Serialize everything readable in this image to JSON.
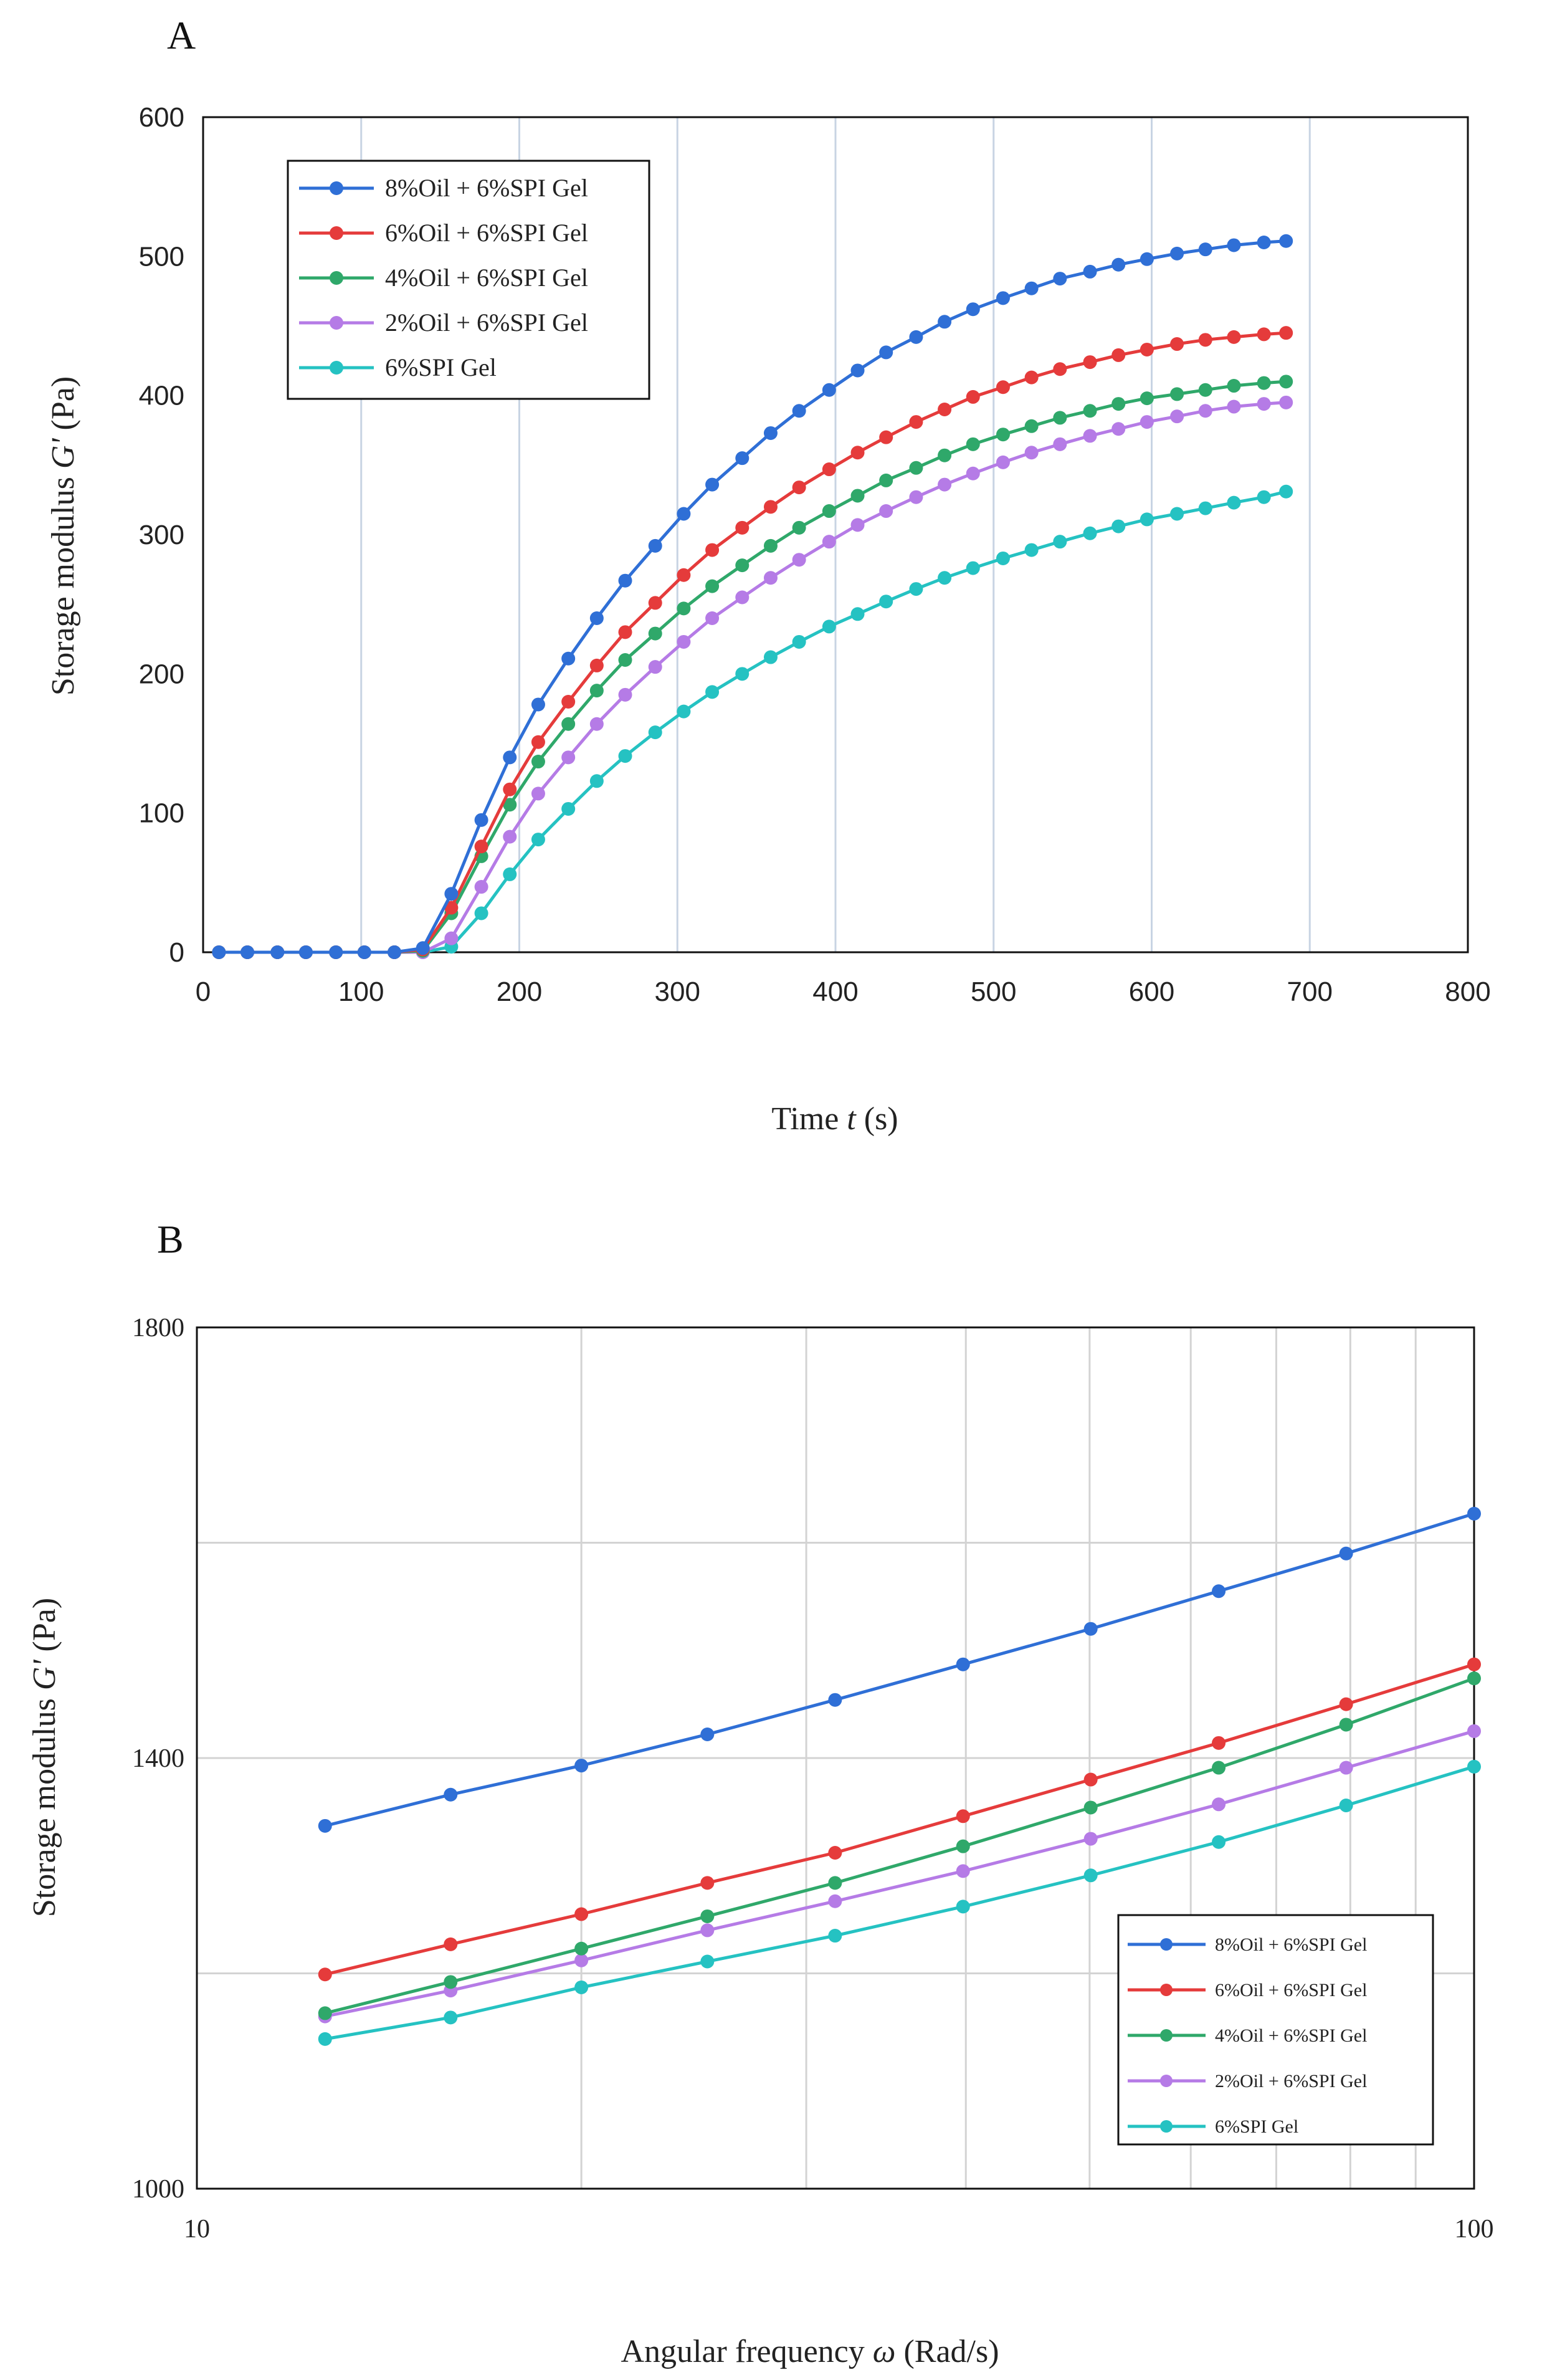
{
  "chart_data": [
    {
      "panel": "A",
      "type": "line",
      "title": "",
      "xlabel_prefix": "Time ",
      "xlabel_var": "t",
      "xlabel_suffix": " (s)",
      "ylabel_prefix": "Storage modulus ",
      "ylabel_var": "G'",
      "ylabel_suffix": " (Pa)",
      "xlim": [
        0,
        800
      ],
      "ylim": [
        0,
        600
      ],
      "xticks": [
        0,
        100,
        200,
        300,
        400,
        500,
        600,
        700,
        800
      ],
      "yticks": [
        0,
        100,
        200,
        300,
        400,
        500,
        600
      ],
      "grid": "vertical",
      "legend_position": "top-left",
      "x": [
        10,
        28,
        47,
        65,
        84,
        102,
        121,
        139,
        157,
        176,
        194,
        212,
        231,
        249,
        267,
        286,
        304,
        322,
        341,
        359,
        377,
        396,
        414,
        432,
        451,
        469,
        487,
        506,
        524,
        542,
        561,
        579,
        597,
        616,
        634,
        652,
        671,
        685
      ],
      "series": [
        {
          "name": "8%Oil + 6%SPI Gel",
          "color": "#2f6fd6",
          "values": [
            0,
            0,
            0,
            0,
            0,
            0,
            0,
            3,
            42,
            95,
            140,
            178,
            211,
            240,
            267,
            292,
            315,
            336,
            355,
            373,
            389,
            404,
            418,
            431,
            442,
            453,
            462,
            470,
            477,
            484,
            489,
            494,
            498,
            502,
            505,
            508,
            510,
            511
          ]
        },
        {
          "name": "6%Oil + 6%SPI Gel",
          "color": "#e53b3b",
          "values": [
            0,
            0,
            0,
            0,
            0,
            0,
            0,
            2,
            32,
            76,
            117,
            151,
            180,
            206,
            230,
            251,
            271,
            289,
            305,
            320,
            334,
            347,
            359,
            370,
            381,
            390,
            399,
            406,
            413,
            419,
            424,
            429,
            433,
            437,
            440,
            442,
            444,
            445
          ]
        },
        {
          "name": "4%Oil + 6%SPI Gel",
          "color": "#2fa86a",
          "values": [
            0,
            0,
            0,
            0,
            0,
            0,
            0,
            1,
            28,
            69,
            106,
            137,
            164,
            188,
            210,
            229,
            247,
            263,
            278,
            292,
            305,
            317,
            328,
            339,
            348,
            357,
            365,
            372,
            378,
            384,
            389,
            394,
            398,
            401,
            404,
            407,
            409,
            410
          ]
        },
        {
          "name": "2%Oil + 6%SPI Gel",
          "color": "#b57be6",
          "values": [
            0,
            0,
            0,
            0,
            0,
            0,
            0,
            0,
            10,
            47,
            83,
            114,
            140,
            164,
            185,
            205,
            223,
            240,
            255,
            269,
            282,
            295,
            307,
            317,
            327,
            336,
            344,
            352,
            359,
            365,
            371,
            376,
            381,
            385,
            389,
            392,
            394,
            395
          ]
        },
        {
          "name": "6%SPI Gel",
          "color": "#25c2c2",
          "values": [
            0,
            0,
            0,
            0,
            0,
            0,
            0,
            0,
            4,
            28,
            56,
            81,
            103,
            123,
            141,
            158,
            173,
            187,
            200,
            212,
            223,
            234,
            243,
            252,
            261,
            269,
            276,
            283,
            289,
            295,
            301,
            306,
            311,
            315,
            319,
            323,
            327,
            331
          ]
        }
      ]
    },
    {
      "panel": "B",
      "type": "line",
      "title": "",
      "xscale": "log",
      "xlabel_prefix": "Angular frequency ",
      "xlabel_var": "ω",
      "xlabel_suffix": " (Rad/s)",
      "ylabel_prefix": "Storage modulus ",
      "ylabel_var": "G'",
      "ylabel_suffix": " (Pa)",
      "xlim": [
        10,
        100
      ],
      "ylim": [
        1000,
        1800
      ],
      "xticks": [
        10,
        100
      ],
      "yticks": [
        1000,
        1400,
        1800
      ],
      "grid": "both",
      "legend_position": "bottom-right",
      "x": [
        12.6,
        15.8,
        20.0,
        25.1,
        31.6,
        39.8,
        50.1,
        63.1,
        79.4,
        100
      ],
      "series": [
        {
          "name": "8%Oil + 6%SPI Gel",
          "color": "#2f6fd6",
          "values": [
            1337,
            1366,
            1393,
            1422,
            1454,
            1487,
            1520,
            1555,
            1590,
            1627
          ]
        },
        {
          "name": "6%Oil + 6%SPI Gel",
          "color": "#e53b3b",
          "values": [
            1199,
            1227,
            1255,
            1284,
            1312,
            1346,
            1380,
            1414,
            1450,
            1487
          ]
        },
        {
          "name": "4%Oil + 6%SPI Gel",
          "color": "#2fa86a",
          "values": [
            1163,
            1192,
            1223,
            1253,
            1284,
            1318,
            1354,
            1391,
            1431,
            1474
          ]
        },
        {
          "name": "2%Oil + 6%SPI Gel",
          "color": "#b57be6",
          "values": [
            1160,
            1184,
            1212,
            1240,
            1267,
            1295,
            1325,
            1357,
            1391,
            1425
          ]
        },
        {
          "name": "6%SPI Gel",
          "color": "#25c2c2",
          "values": [
            1139,
            1159,
            1187,
            1211,
            1235,
            1262,
            1291,
            1322,
            1356,
            1392
          ]
        }
      ]
    }
  ]
}
